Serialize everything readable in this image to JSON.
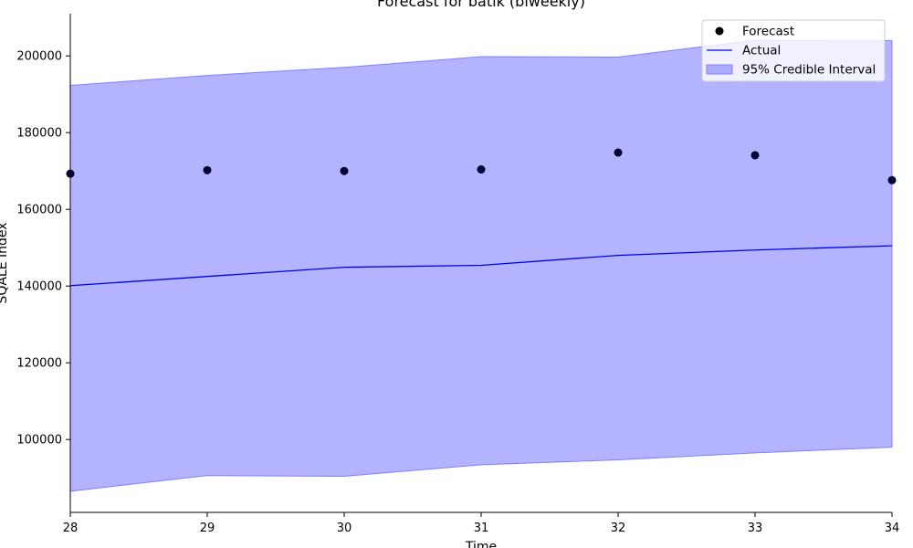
{
  "chart_data": {
    "type": "line",
    "title": "Forecast for batik (biweekly)",
    "xlabel": "Time",
    "ylabel": "SQALE Index",
    "x": [
      28,
      29,
      30,
      31,
      32,
      33,
      34
    ],
    "xlim": [
      28,
      34
    ],
    "ylim": [
      81000,
      211000
    ],
    "yticks": [
      100000,
      120000,
      140000,
      160000,
      180000,
      200000
    ],
    "xticks": [
      28,
      29,
      30,
      31,
      32,
      33,
      34
    ],
    "series": [
      {
        "name": "Forecast",
        "kind": "scatter",
        "color": "#000033",
        "values": [
          169300,
          170200,
          170000,
          170400,
          174800,
          174100,
          167600
        ]
      },
      {
        "name": "Actual",
        "kind": "line",
        "color": "#0000ee",
        "values": [
          140100,
          142500,
          144900,
          145400,
          148000,
          149400,
          150500
        ]
      },
      {
        "name": "95% Credible Interval",
        "kind": "band",
        "color": "#8080ff",
        "lower": [
          86500,
          90600,
          90400,
          93400,
          94700,
          96500,
          98000
        ],
        "upper": [
          192300,
          194900,
          197000,
          199800,
          199700,
          204100,
          204000
        ]
      }
    ],
    "legend": {
      "placement": "top-right"
    },
    "grid": false
  }
}
